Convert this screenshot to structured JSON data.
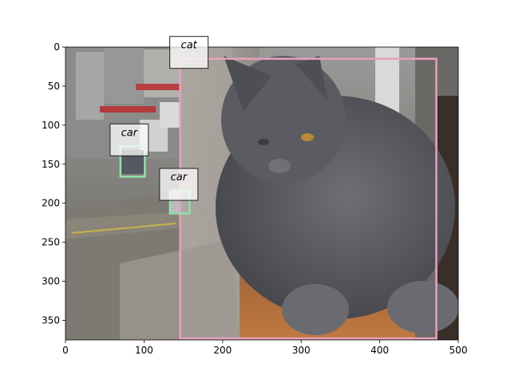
{
  "image": {
    "description_free": true,
    "width": 500,
    "height": 375
  },
  "axes": {
    "x_ticks": [
      "0",
      "100",
      "200",
      "300",
      "400",
      "500"
    ],
    "y_ticks": [
      "0",
      "50",
      "100",
      "150",
      "200",
      "250",
      "300",
      "350"
    ]
  },
  "detections": [
    {
      "label": "cat",
      "color": "#e8a0bf",
      "x1": 146,
      "y1": 15,
      "x2": 472,
      "y2": 373
    },
    {
      "label": "car",
      "color": "#8fe3a8",
      "x1": 70,
      "y1": 127,
      "x2": 101,
      "y2": 166
    },
    {
      "label": "car",
      "color": "#8fe3a8",
      "x1": 133,
      "y1": 184,
      "x2": 158,
      "y2": 213
    }
  ]
}
